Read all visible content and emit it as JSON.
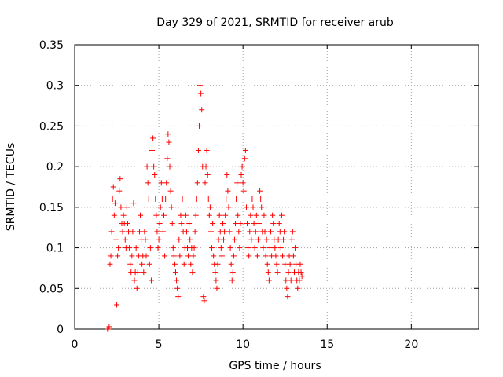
{
  "chart_data": {
    "type": "scatter",
    "title": "Day 329 of 2021, SRMTID for receiver arub",
    "xlabel": "GPS time / hours",
    "ylabel": "SRMTID / TECUs",
    "xlim": [
      0,
      24
    ],
    "ylim": [
      0,
      0.35
    ],
    "xticks": [
      0,
      5,
      10,
      15,
      20
    ],
    "xtick_labels": [
      "0",
      "5",
      "10",
      "15",
      "20"
    ],
    "yticks": [
      0,
      0.05,
      0.1,
      0.15,
      0.2,
      0.25,
      0.3,
      0.35
    ],
    "ytick_labels": [
      "0",
      "0.05",
      "0.1",
      "0.15",
      "0.2",
      "0.25",
      "0.3",
      "0.35"
    ],
    "grid": true,
    "marker": "+",
    "series_color": "#ff0000",
    "series": [
      {
        "name": "SRMTID",
        "points": [
          [
            1.95,
            0.0
          ],
          [
            2.0,
            0.0
          ],
          [
            2.05,
            0.003
          ],
          [
            2.1,
            0.08
          ],
          [
            2.15,
            0.09
          ],
          [
            2.2,
            0.12
          ],
          [
            2.25,
            0.16
          ],
          [
            2.3,
            0.175
          ],
          [
            2.35,
            0.14
          ],
          [
            2.4,
            0.155
          ],
          [
            2.45,
            0.11
          ],
          [
            2.5,
            0.03
          ],
          [
            2.55,
            0.09
          ],
          [
            2.6,
            0.1
          ],
          [
            2.65,
            0.17
          ],
          [
            2.7,
            0.185
          ],
          [
            2.75,
            0.15
          ],
          [
            2.8,
            0.13
          ],
          [
            2.85,
            0.12
          ],
          [
            2.9,
            0.14
          ],
          [
            2.95,
            0.13
          ],
          [
            3.0,
            0.11
          ],
          [
            3.05,
            0.1
          ],
          [
            3.1,
            0.15
          ],
          [
            3.15,
            0.13
          ],
          [
            3.2,
            0.12
          ],
          [
            3.25,
            0.1
          ],
          [
            3.3,
            0.08
          ],
          [
            3.35,
            0.07
          ],
          [
            3.4,
            0.09
          ],
          [
            3.45,
            0.12
          ],
          [
            3.5,
            0.155
          ],
          [
            3.55,
            0.06
          ],
          [
            3.6,
            0.07
          ],
          [
            3.65,
            0.1
          ],
          [
            3.7,
            0.05
          ],
          [
            3.75,
            0.07
          ],
          [
            3.8,
            0.09
          ],
          [
            3.85,
            0.12
          ],
          [
            3.9,
            0.14
          ],
          [
            3.95,
            0.11
          ],
          [
            4.0,
            0.08
          ],
          [
            4.05,
            0.09
          ],
          [
            4.1,
            0.07
          ],
          [
            4.15,
            0.12
          ],
          [
            4.2,
            0.11
          ],
          [
            4.25,
            0.09
          ],
          [
            4.3,
            0.2
          ],
          [
            4.35,
            0.18
          ],
          [
            4.4,
            0.16
          ],
          [
            4.45,
            0.08
          ],
          [
            4.5,
            0.1
          ],
          [
            4.55,
            0.06
          ],
          [
            4.6,
            0.22
          ],
          [
            4.65,
            0.235
          ],
          [
            4.7,
            0.2
          ],
          [
            4.75,
            0.19
          ],
          [
            4.8,
            0.16
          ],
          [
            4.85,
            0.14
          ],
          [
            4.9,
            0.12
          ],
          [
            4.95,
            0.1
          ],
          [
            5.0,
            0.11
          ],
          [
            5.05,
            0.13
          ],
          [
            5.1,
            0.15
          ],
          [
            5.15,
            0.18
          ],
          [
            5.2,
            0.16
          ],
          [
            5.25,
            0.12
          ],
          [
            5.3,
            0.14
          ],
          [
            5.35,
            0.09
          ],
          [
            5.4,
            0.16
          ],
          [
            5.45,
            0.18
          ],
          [
            5.5,
            0.21
          ],
          [
            5.55,
            0.24
          ],
          [
            5.6,
            0.23
          ],
          [
            5.65,
            0.2
          ],
          [
            5.7,
            0.17
          ],
          [
            5.75,
            0.15
          ],
          [
            5.8,
            0.13
          ],
          [
            5.85,
            0.1
          ],
          [
            5.9,
            0.09
          ],
          [
            5.95,
            0.08
          ],
          [
            6.0,
            0.07
          ],
          [
            6.05,
            0.06
          ],
          [
            6.1,
            0.05
          ],
          [
            6.15,
            0.04
          ],
          [
            6.2,
            0.11
          ],
          [
            6.25,
            0.09
          ],
          [
            6.3,
            0.14
          ],
          [
            6.35,
            0.13
          ],
          [
            6.4,
            0.16
          ],
          [
            6.45,
            0.12
          ],
          [
            6.5,
            0.08
          ],
          [
            6.55,
            0.1
          ],
          [
            6.6,
            0.14
          ],
          [
            6.65,
            0.12
          ],
          [
            6.7,
            0.1
          ],
          [
            6.75,
            0.09
          ],
          [
            6.8,
            0.13
          ],
          [
            6.85,
            0.11
          ],
          [
            6.9,
            0.08
          ],
          [
            6.95,
            0.1
          ],
          [
            7.0,
            0.07
          ],
          [
            7.05,
            0.09
          ],
          [
            7.1,
            0.1
          ],
          [
            7.15,
            0.12
          ],
          [
            7.2,
            0.14
          ],
          [
            7.25,
            0.16
          ],
          [
            7.3,
            0.18
          ],
          [
            7.35,
            0.22
          ],
          [
            7.4,
            0.25
          ],
          [
            7.45,
            0.3
          ],
          [
            7.5,
            0.29
          ],
          [
            7.55,
            0.27
          ],
          [
            7.6,
            0.2
          ],
          [
            7.65,
            0.04
          ],
          [
            7.7,
            0.035
          ],
          [
            7.75,
            0.18
          ],
          [
            7.8,
            0.2
          ],
          [
            7.85,
            0.22
          ],
          [
            7.9,
            0.19
          ],
          [
            7.95,
            0.16
          ],
          [
            8.0,
            0.14
          ],
          [
            8.05,
            0.15
          ],
          [
            8.1,
            0.12
          ],
          [
            8.15,
            0.1
          ],
          [
            8.2,
            0.13
          ],
          [
            8.25,
            0.09
          ],
          [
            8.3,
            0.08
          ],
          [
            8.35,
            0.07
          ],
          [
            8.4,
            0.06
          ],
          [
            8.45,
            0.05
          ],
          [
            8.5,
            0.08
          ],
          [
            8.55,
            0.11
          ],
          [
            8.6,
            0.14
          ],
          [
            8.65,
            0.12
          ],
          [
            8.7,
            0.1
          ],
          [
            8.75,
            0.09
          ],
          [
            8.8,
            0.13
          ],
          [
            8.85,
            0.11
          ],
          [
            8.9,
            0.12
          ],
          [
            8.95,
            0.14
          ],
          [
            9.0,
            0.16
          ],
          [
            9.05,
            0.19
          ],
          [
            9.1,
            0.17
          ],
          [
            9.15,
            0.15
          ],
          [
            9.2,
            0.12
          ],
          [
            9.25,
            0.1
          ],
          [
            9.3,
            0.08
          ],
          [
            9.35,
            0.06
          ],
          [
            9.4,
            0.07
          ],
          [
            9.45,
            0.09
          ],
          [
            9.5,
            0.11
          ],
          [
            9.55,
            0.13
          ],
          [
            9.6,
            0.16
          ],
          [
            9.65,
            0.18
          ],
          [
            9.7,
            0.14
          ],
          [
            9.75,
            0.12
          ],
          [
            9.8,
            0.1
          ],
          [
            9.85,
            0.13
          ],
          [
            9.9,
            0.19
          ],
          [
            9.95,
            0.2
          ],
          [
            10.0,
            0.18
          ],
          [
            10.05,
            0.17
          ],
          [
            10.1,
            0.21
          ],
          [
            10.15,
            0.22
          ],
          [
            10.2,
            0.15
          ],
          [
            10.25,
            0.13
          ],
          [
            10.3,
            0.1
          ],
          [
            10.35,
            0.09
          ],
          [
            10.4,
            0.12
          ],
          [
            10.45,
            0.14
          ],
          [
            10.5,
            0.11
          ],
          [
            10.55,
            0.16
          ],
          [
            10.6,
            0.15
          ],
          [
            10.65,
            0.13
          ],
          [
            10.7,
            0.1
          ],
          [
            10.75,
            0.12
          ],
          [
            10.8,
            0.14
          ],
          [
            10.85,
            0.09
          ],
          [
            10.9,
            0.11
          ],
          [
            10.95,
            0.13
          ],
          [
            11.0,
            0.17
          ],
          [
            11.05,
            0.16
          ],
          [
            11.1,
            0.15
          ],
          [
            11.15,
            0.12
          ],
          [
            11.2,
            0.1
          ],
          [
            11.25,
            0.14
          ],
          [
            11.3,
            0.12
          ],
          [
            11.35,
            0.09
          ],
          [
            11.4,
            0.11
          ],
          [
            11.45,
            0.08
          ],
          [
            11.5,
            0.07
          ],
          [
            11.55,
            0.06
          ],
          [
            11.6,
            0.1
          ],
          [
            11.65,
            0.12
          ],
          [
            11.7,
            0.09
          ],
          [
            11.75,
            0.14
          ],
          [
            11.8,
            0.13
          ],
          [
            11.85,
            0.11
          ],
          [
            11.9,
            0.1
          ],
          [
            11.95,
            0.09
          ],
          [
            12.0,
            0.08
          ],
          [
            12.05,
            0.07
          ],
          [
            12.1,
            0.11
          ],
          [
            12.15,
            0.13
          ],
          [
            12.2,
            0.12
          ],
          [
            12.25,
            0.1
          ],
          [
            12.3,
            0.14
          ],
          [
            12.35,
            0.09
          ],
          [
            12.4,
            0.11
          ],
          [
            12.45,
            0.12
          ],
          [
            12.5,
            0.08
          ],
          [
            12.55,
            0.06
          ],
          [
            12.6,
            0.05
          ],
          [
            12.65,
            0.04
          ],
          [
            12.7,
            0.07
          ],
          [
            12.75,
            0.09
          ],
          [
            12.8,
            0.08
          ],
          [
            12.85,
            0.06
          ],
          [
            12.9,
            0.11
          ],
          [
            12.95,
            0.12
          ],
          [
            13.0,
            0.09
          ],
          [
            13.05,
            0.07
          ],
          [
            13.1,
            0.1
          ],
          [
            13.15,
            0.08
          ],
          [
            13.2,
            0.06
          ],
          [
            13.25,
            0.05
          ],
          [
            13.3,
            0.07
          ],
          [
            13.35,
            0.06
          ],
          [
            13.4,
            0.08
          ],
          [
            13.45,
            0.07
          ],
          [
            13.5,
            0.065
          ]
        ]
      }
    ]
  }
}
